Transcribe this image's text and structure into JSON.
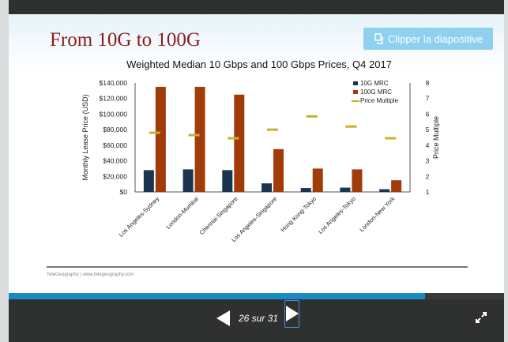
{
  "slide": {
    "title": "From 10G to 100G",
    "clip_button_label": "Clipper la diapositive",
    "footer": "TeleGeography | www.telegeography.com"
  },
  "navigation": {
    "counter": "26 sur 31",
    "progress": 0.84
  },
  "chart_data": {
    "type": "bar",
    "title": "Weighted Median 10 Gbps and 100 Gbps Prices, Q4 2017",
    "ylabel": "Monthly Lease Price (USD)",
    "y2label": "Price Multiple",
    "ylim": [
      0,
      140000
    ],
    "y2lim": [
      1,
      8
    ],
    "yticks": [
      "$0",
      "$20,000",
      "$40,000",
      "$60,000",
      "$80,000",
      "$100,000",
      "$120,000",
      "$140,000"
    ],
    "y2ticks": [
      "1",
      "2",
      "3",
      "4",
      "5",
      "6",
      "7",
      "8"
    ],
    "categories": [
      "Los Angeles-Sydney",
      "London-Mumbai",
      "Chennai-Singapore",
      "Los Angeles-Singapore",
      "Hong Kong-Tokyo",
      "Los Angeles-Tokyo",
      "London-New York"
    ],
    "series": [
      {
        "name": "10G MRC",
        "type": "bar",
        "color": "#1b3550",
        "values": [
          28000,
          29000,
          28000,
          11000,
          5000,
          5500,
          3500
        ]
      },
      {
        "name": "100G MRC",
        "type": "bar",
        "color": "#a23b0a",
        "values": [
          135000,
          135000,
          125000,
          55000,
          30000,
          29000,
          15000
        ]
      },
      {
        "name": "Price Multiple",
        "type": "marker",
        "axis": "right",
        "color": "#c9b12a",
        "values": [
          4.8,
          4.65,
          4.45,
          5.0,
          5.85,
          5.2,
          4.45
        ]
      }
    ],
    "legend_position": "top-right",
    "grid": false
  }
}
